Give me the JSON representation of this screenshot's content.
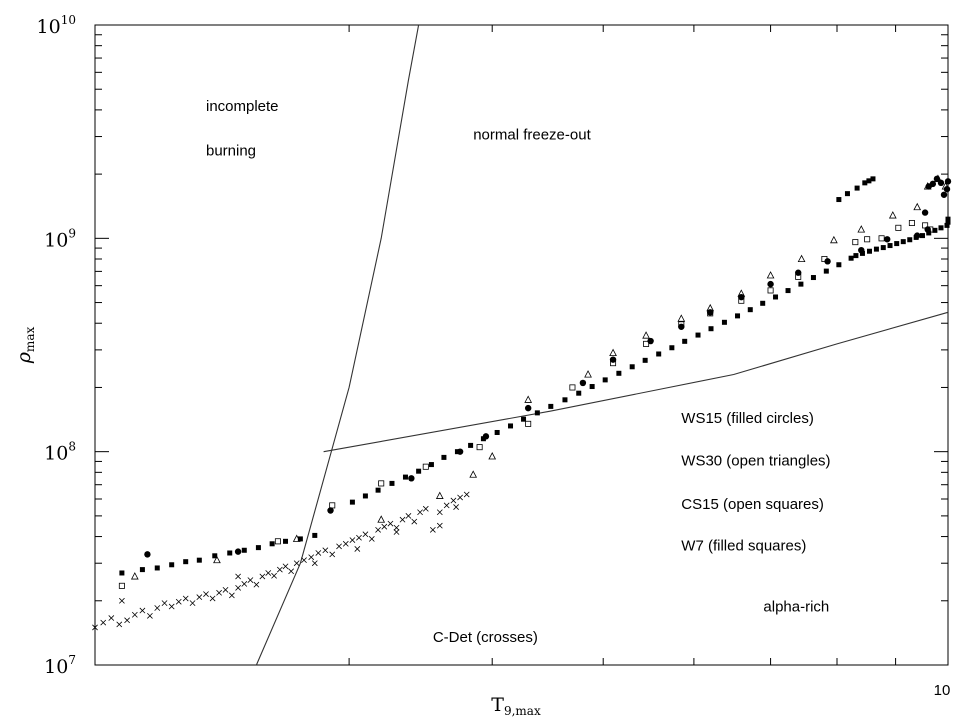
{
  "chart_data": {
    "type": "scatter",
    "xlabel": "T",
    "xlabel_sub": "9,max",
    "ylabel": "ρ",
    "ylabel_sub": "max",
    "x_scale": "log",
    "y_scale": "log",
    "xlim": [
      1.8,
      10
    ],
    "ylim": [
      10000000.0,
      10000000000.0
    ],
    "x_tick_labels": [
      {
        "value": 10,
        "label": "10"
      }
    ],
    "x_minor_ticks": [
      3,
      4,
      5,
      6,
      7,
      8,
      9
    ],
    "y_tick_labels": [
      {
        "value": 10000000.0,
        "base": "10",
        "exp": "7"
      },
      {
        "value": 100000000.0,
        "base": "10",
        "exp": "8"
      },
      {
        "value": 1000000000.0,
        "base": "10",
        "exp": "9"
      },
      {
        "value": 10000000000.0,
        "base": "10",
        "exp": "10"
      }
    ],
    "grid": false,
    "region_labels": [
      {
        "key": "incomplete",
        "text": "incomplete",
        "x": 2.25,
        "y": 3950000000.0
      },
      {
        "key": "burning",
        "text": "burning",
        "x": 2.25,
        "y": 2450000000.0
      },
      {
        "key": "normal",
        "text": "normal freeze-out",
        "x": 3.85,
        "y": 2900000000.0
      },
      {
        "key": "ws15",
        "text": "WS15 (filled circles)",
        "x": 5.85,
        "y": 136000000.0
      },
      {
        "key": "ws30",
        "text": "WS30 (open triangles)",
        "x": 5.85,
        "y": 86000000.0
      },
      {
        "key": "cs15",
        "text": "CS15 (open squares)",
        "x": 5.85,
        "y": 54000000.0
      },
      {
        "key": "w7",
        "text": "W7 (filled squares)",
        "x": 5.85,
        "y": 34500000.0
      },
      {
        "key": "alpha",
        "text": "alpha-rich",
        "x": 6.9,
        "y": 17800000.0
      },
      {
        "key": "cdet",
        "text": "C-Det (crosses)",
        "x": 3.55,
        "y": 12800000.0
      }
    ],
    "boundary_lines": [
      {
        "name": "incomplete-boundary",
        "points": [
          [
            2.49,
            10000000.0
          ],
          [
            2.72,
            30000000.0
          ],
          [
            3.0,
            200000000.0
          ],
          [
            3.2,
            1000000000.0
          ],
          [
            3.38,
            5500000000.0
          ],
          [
            3.45,
            10000000000.0
          ]
        ]
      },
      {
        "name": "alpha-rich-boundary",
        "points": [
          [
            2.85,
            100000000.0
          ],
          [
            4.5,
            155000000.0
          ],
          [
            6.5,
            230000000.0
          ],
          [
            8.0,
            320000000.0
          ],
          [
            10,
            450000000.0
          ]
        ]
      }
    ],
    "series": [
      {
        "marker": "filled-square",
        "points": [
          [
            1.9,
            27000000.0
          ],
          [
            1.98,
            28000000.0
          ],
          [
            2.04,
            28500000.0
          ],
          [
            2.1,
            29500000.0
          ],
          [
            2.16,
            30500000.0
          ],
          [
            2.22,
            31000000.0
          ],
          [
            2.29,
            32500000.0
          ],
          [
            2.36,
            33500000.0
          ],
          [
            2.43,
            34500000.0
          ],
          [
            2.5,
            35500000.0
          ],
          [
            2.57,
            37000000.0
          ],
          [
            2.64,
            38000000.0
          ],
          [
            2.72,
            39000000.0
          ],
          [
            2.8,
            40500000.0
          ],
          [
            3.02,
            58000000.0
          ],
          [
            3.1,
            62000000.0
          ],
          [
            3.18,
            66000000.0
          ],
          [
            3.27,
            71000000.0
          ],
          [
            3.36,
            76000000.0
          ],
          [
            3.45,
            81000000.0
          ],
          [
            3.54,
            87000000.0
          ],
          [
            3.63,
            94000000.0
          ],
          [
            3.73,
            100000000.0
          ],
          [
            3.83,
            107000000.0
          ],
          [
            3.93,
            115000000.0
          ],
          [
            4.04,
            123000000.0
          ],
          [
            4.15,
            132000000.0
          ],
          [
            4.26,
            142000000.0
          ],
          [
            4.38,
            152000000.0
          ],
          [
            4.5,
            163000000.0
          ],
          [
            4.63,
            175000000.0
          ],
          [
            4.76,
            188000000.0
          ],
          [
            4.89,
            202000000.0
          ],
          [
            5.02,
            217000000.0
          ],
          [
            5.16,
            233000000.0
          ],
          [
            5.3,
            250000000.0
          ],
          [
            5.44,
            268000000.0
          ],
          [
            5.59,
            287000000.0
          ],
          [
            5.74,
            307000000.0
          ],
          [
            5.89,
            329000000.0
          ],
          [
            6.05,
            352000000.0
          ],
          [
            6.21,
            377000000.0
          ],
          [
            6.38,
            404000000.0
          ],
          [
            6.55,
            433000000.0
          ],
          [
            6.72,
            463000000.0
          ],
          [
            6.89,
            496000000.0
          ],
          [
            7.07,
            531000000.0
          ],
          [
            7.25,
            569000000.0
          ],
          [
            7.44,
            610000000.0
          ],
          [
            7.63,
            655000000.0
          ],
          [
            7.83,
            702000000.0
          ],
          [
            8.03,
            752000000.0
          ],
          [
            8.23,
            807000000.0
          ],
          [
            8.31,
            830000000.0
          ],
          [
            8.42,
            850000000.0
          ],
          [
            8.54,
            870000000.0
          ],
          [
            8.66,
            890000000.0
          ],
          [
            8.78,
            905000000.0
          ],
          [
            8.9,
            925000000.0
          ],
          [
            9.02,
            945000000.0
          ],
          [
            9.14,
            965000000.0
          ],
          [
            9.26,
            985000000.0
          ],
          [
            9.38,
            1010000000.0
          ],
          [
            9.5,
            1030000000.0
          ],
          [
            9.62,
            1060000000.0
          ],
          [
            9.74,
            1090000000.0
          ],
          [
            9.86,
            1120000000.0
          ],
          [
            9.98,
            1150000000.0
          ],
          [
            10.0,
            1190000000.0
          ],
          [
            10.0,
            1230000000.0
          ],
          [
            8.03,
            1520000000.0
          ],
          [
            8.17,
            1620000000.0
          ],
          [
            8.33,
            1720000000.0
          ],
          [
            8.46,
            1820000000.0
          ],
          [
            8.53,
            1860000000.0
          ],
          [
            8.6,
            1900000000.0
          ]
        ]
      },
      {
        "marker": "filled-circle",
        "points": [
          [
            2.0,
            33000000.0
          ],
          [
            2.4,
            34000000.0
          ],
          [
            2.89,
            53000000.0
          ],
          [
            3.4,
            75000000.0
          ],
          [
            3.75,
            100000000.0
          ],
          [
            3.95,
            118000000.0
          ],
          [
            4.3,
            160000000.0
          ],
          [
            4.8,
            210000000.0
          ],
          [
            5.1,
            270000000.0
          ],
          [
            5.5,
            330000000.0
          ],
          [
            5.85,
            385000000.0
          ],
          [
            6.2,
            450000000.0
          ],
          [
            6.6,
            530000000.0
          ],
          [
            7.0,
            610000000.0
          ],
          [
            7.4,
            690000000.0
          ],
          [
            7.85,
            780000000.0
          ],
          [
            8.4,
            880000000.0
          ],
          [
            8.85,
            990000000.0
          ],
          [
            9.4,
            1030000000.0
          ],
          [
            9.6,
            1100000000.0
          ],
          [
            9.55,
            1320000000.0
          ],
          [
            9.62,
            1750000000.0
          ],
          [
            9.7,
            1800000000.0
          ],
          [
            9.78,
            1900000000.0
          ],
          [
            9.86,
            1820000000.0
          ],
          [
            9.92,
            1600000000.0
          ],
          [
            9.98,
            1700000000.0
          ],
          [
            10.0,
            1850000000.0
          ]
        ]
      },
      {
        "marker": "open-triangle",
        "points": [
          [
            1.95,
            26000000.0
          ],
          [
            2.3,
            31000000.0
          ],
          [
            2.7,
            39000000.0
          ],
          [
            3.2,
            48000000.0
          ],
          [
            3.6,
            62000000.0
          ],
          [
            3.85,
            78000000.0
          ],
          [
            4.0,
            95000000.0
          ],
          [
            4.3,
            175000000.0
          ],
          [
            4.85,
            230000000.0
          ],
          [
            5.1,
            290000000.0
          ],
          [
            5.45,
            350000000.0
          ],
          [
            5.85,
            420000000.0
          ],
          [
            6.2,
            470000000.0
          ],
          [
            6.6,
            550000000.0
          ],
          [
            7.0,
            670000000.0
          ],
          [
            7.45,
            800000000.0
          ],
          [
            7.95,
            980000000.0
          ],
          [
            8.4,
            1100000000.0
          ],
          [
            8.95,
            1280000000.0
          ],
          [
            9.4,
            1400000000.0
          ],
          [
            9.6,
            1750000000.0
          ],
          [
            9.8,
            1900000000.0
          ],
          [
            9.95,
            1750000000.0
          ]
        ]
      },
      {
        "marker": "open-square",
        "points": [
          [
            1.9,
            23500000.0
          ],
          [
            2.6,
            38000000.0
          ],
          [
            2.9,
            56000000.0
          ],
          [
            3.2,
            71000000.0
          ],
          [
            3.5,
            85000000.0
          ],
          [
            3.9,
            105000000.0
          ],
          [
            4.3,
            135000000.0
          ],
          [
            4.7,
            200000000.0
          ],
          [
            5.1,
            260000000.0
          ],
          [
            5.45,
            320000000.0
          ],
          [
            5.85,
            395000000.0
          ],
          [
            6.2,
            445000000.0
          ],
          [
            6.6,
            510000000.0
          ],
          [
            7.0,
            570000000.0
          ],
          [
            7.4,
            660000000.0
          ],
          [
            7.8,
            800000000.0
          ],
          [
            8.3,
            960000000.0
          ],
          [
            8.5,
            990000000.0
          ],
          [
            8.75,
            1000000000.0
          ],
          [
            9.05,
            1120000000.0
          ],
          [
            9.3,
            1180000000.0
          ],
          [
            9.55,
            1150000000.0
          ],
          [
            9.65,
            1100000000.0
          ]
        ]
      },
      {
        "marker": "cross",
        "points": [
          [
            1.8,
            15000000.0
          ],
          [
            1.83,
            15800000.0
          ],
          [
            1.86,
            16600000.0
          ],
          [
            1.89,
            15500000.0
          ],
          [
            1.92,
            16200000.0
          ],
          [
            1.95,
            17200000.0
          ],
          [
            1.98,
            18000000.0
          ],
          [
            2.01,
            17000000.0
          ],
          [
            2.04,
            18500000.0
          ],
          [
            2.07,
            19500000.0
          ],
          [
            2.1,
            18800000.0
          ],
          [
            2.13,
            19800000.0
          ],
          [
            2.16,
            20500000.0
          ],
          [
            2.19,
            19500000.0
          ],
          [
            2.22,
            20800000.0
          ],
          [
            2.25,
            21500000.0
          ],
          [
            2.28,
            20500000.0
          ],
          [
            2.31,
            21800000.0
          ],
          [
            2.34,
            22500000.0
          ],
          [
            2.37,
            21200000.0
          ],
          [
            2.4,
            23000000.0
          ],
          [
            2.43,
            24000000.0
          ],
          [
            2.46,
            25000000.0
          ],
          [
            2.49,
            23800000.0
          ],
          [
            2.52,
            26000000.0
          ],
          [
            2.55,
            27000000.0
          ],
          [
            2.58,
            26200000.0
          ],
          [
            2.61,
            28000000.0
          ],
          [
            2.64,
            29000000.0
          ],
          [
            2.67,
            27500000.0
          ],
          [
            2.7,
            30000000.0
          ],
          [
            2.74,
            31000000.0
          ],
          [
            2.78,
            32000000.0
          ],
          [
            2.82,
            33500000.0
          ],
          [
            2.86,
            34500000.0
          ],
          [
            2.9,
            33000000.0
          ],
          [
            2.94,
            36000000.0
          ],
          [
            2.98,
            37000000.0
          ],
          [
            3.02,
            38500000.0
          ],
          [
            3.06,
            39500000.0
          ],
          [
            3.1,
            41000000.0
          ],
          [
            3.14,
            39000000.0
          ],
          [
            3.18,
            43000000.0
          ],
          [
            3.22,
            44500000.0
          ],
          [
            3.26,
            46000000.0
          ],
          [
            3.3,
            42000000.0
          ],
          [
            3.34,
            48000000.0
          ],
          [
            3.38,
            50000000.0
          ],
          [
            3.42,
            47000000.0
          ],
          [
            3.46,
            52000000.0
          ],
          [
            3.5,
            54000000.0
          ],
          [
            3.55,
            43000000.0
          ],
          [
            3.6,
            45000000.0
          ],
          [
            3.65,
            56000000.0
          ],
          [
            3.7,
            59000000.0
          ],
          [
            3.75,
            61000000.0
          ],
          [
            3.8,
            63000000.0
          ],
          [
            1.9,
            20000000.0
          ],
          [
            2.4,
            26000000.0
          ],
          [
            2.8,
            30000000.0
          ],
          [
            3.05,
            35000000.0
          ],
          [
            3.3,
            44000000.0
          ],
          [
            3.6,
            52000000.0
          ],
          [
            3.72,
            55000000.0
          ]
        ]
      }
    ]
  }
}
